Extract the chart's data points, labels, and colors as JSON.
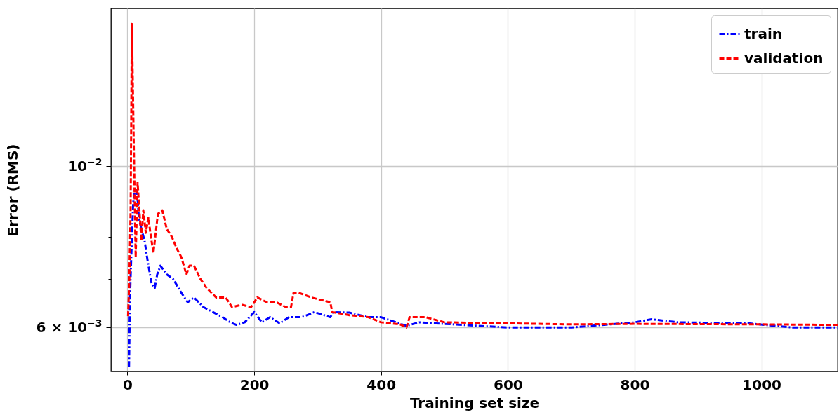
{
  "chart_data": {
    "type": "line",
    "xlabel": "Training set size",
    "ylabel": "Error (RMS)",
    "log": true,
    "grid": true,
    "legend": "top right",
    "xlim": [
      -26,
      1120
    ],
    "xticks": [
      0,
      200,
      400,
      600,
      800,
      1000
    ],
    "ylim": [
      0.00522,
      0.0165
    ],
    "yticks": [
      {
        "value": 0.006,
        "label": "6 × 10$^{−3}$"
      },
      {
        "value": 0.007,
        "label": null
      },
      {
        "value": 0.008,
        "label": null
      },
      {
        "value": 0.009,
        "label": null
      },
      {
        "value": 0.01,
        "label": "10$^{−2}$"
      }
    ],
    "series": [
      {
        "name": "train",
        "color": "#0000ff",
        "line_style": "dashdot",
        "x": [
          2.5,
          4,
          6,
          9,
          12,
          15,
          18,
          22,
          27,
          32,
          38,
          43,
          47,
          52,
          62,
          72,
          85,
          95,
          105,
          120,
          135,
          150,
          162,
          172,
          185,
          200,
          212,
          225,
          240,
          255,
          275,
          295,
          320,
          325,
          350,
          380,
          400,
          440,
          460,
          500,
          600,
          700,
          800,
          827,
          868,
          979,
          1049,
          1120
        ],
        "values": [
          0.0053,
          0.0066,
          0.0075,
          0.0089,
          0.0093,
          0.0093,
          0.0085,
          0.0082,
          0.0079,
          0.0074,
          0.0069,
          0.0068,
          0.0071,
          0.0073,
          0.0071,
          0.007,
          0.0067,
          0.0065,
          0.0066,
          0.0064,
          0.0063,
          0.0062,
          0.0061,
          0.00605,
          0.0061,
          0.0063,
          0.0061,
          0.0062,
          0.00608,
          0.0062,
          0.0062,
          0.0063,
          0.0062,
          0.0063,
          0.00629,
          0.0062,
          0.0062,
          0.00603,
          0.0061,
          0.00607,
          0.006,
          0.006,
          0.0061,
          0.00616,
          0.0061,
          0.00608,
          0.006,
          0.006
        ]
      },
      {
        "name": "validation",
        "color": "#ff0000",
        "line_style": "dashed",
        "x": [
          1,
          3,
          5,
          7,
          10,
          13,
          16,
          22,
          25,
          29,
          33,
          37,
          41,
          48,
          55,
          62,
          70,
          78,
          85,
          93,
          98,
          105,
          115,
          125,
          140,
          155,
          165,
          180,
          195,
          205,
          220,
          235,
          250,
          258,
          262,
          270,
          290,
          320,
          323,
          350,
          380,
          400,
          430,
          440,
          445,
          470,
          500,
          600,
          700,
          800,
          1000,
          1120
        ],
        "values": [
          0.00622,
          0.007,
          0.0087,
          0.0157,
          0.0107,
          0.0075,
          0.0095,
          0.0079,
          0.0087,
          0.0081,
          0.0085,
          0.008,
          0.0076,
          0.0086,
          0.0087,
          0.0082,
          0.008,
          0.0077,
          0.0075,
          0.0071,
          0.0073,
          0.0073,
          0.007,
          0.0068,
          0.0066,
          0.0066,
          0.0064,
          0.00645,
          0.0064,
          0.0066,
          0.0065,
          0.0065,
          0.0064,
          0.0064,
          0.0067,
          0.0067,
          0.0066,
          0.0065,
          0.0063,
          0.00624,
          0.0062,
          0.0061,
          0.00606,
          0.006,
          0.0062,
          0.0062,
          0.0061,
          0.00608,
          0.00606,
          0.00607,
          0.00606,
          0.00605
        ]
      }
    ]
  }
}
